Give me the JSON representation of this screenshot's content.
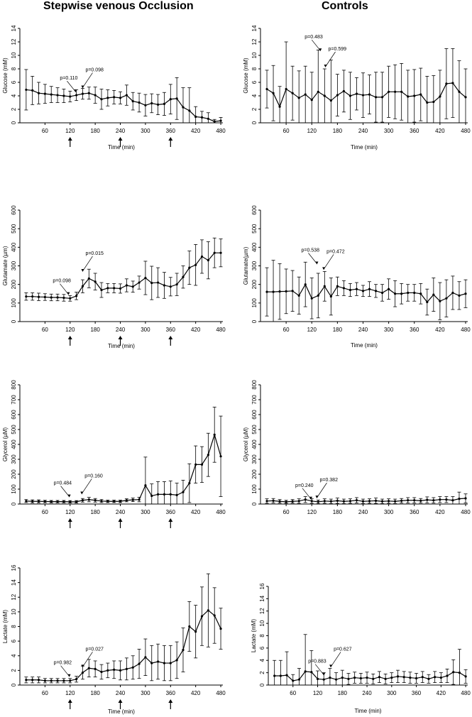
{
  "titles": {
    "left": "Stepwise venous Occlusion",
    "right": "Controls"
  },
  "chart_data": [
    {
      "type": "line",
      "group": "Stepwise venous Occlusion",
      "ylabel": "Glucose (mM)",
      "xlabel": "Time (min)",
      "xlim": [
        0,
        485
      ],
      "ylim": [
        0,
        14
      ],
      "xticks": [
        60,
        120,
        180,
        240,
        300,
        360,
        420,
        480
      ],
      "yticks": [
        0,
        2,
        4,
        6,
        8,
        10,
        12,
        14
      ],
      "arrows_at": [
        120,
        240,
        360
      ],
      "x": [
        15,
        30,
        45,
        60,
        75,
        90,
        105,
        120,
        135,
        150,
        165,
        180,
        195,
        210,
        225,
        240,
        255,
        270,
        285,
        300,
        315,
        330,
        345,
        360,
        375,
        390,
        405,
        420,
        435,
        450,
        465,
        480
      ],
      "y": [
        4.9,
        4.8,
        4.4,
        4.3,
        4.2,
        4.1,
        4.0,
        3.9,
        4.1,
        4.3,
        4.4,
        4.1,
        3.5,
        3.7,
        3.8,
        3.7,
        4.1,
        3.2,
        3.0,
        2.6,
        2.9,
        2.7,
        2.8,
        3.5,
        3.6,
        2.3,
        1.8,
        0.9,
        0.8,
        0.6,
        0.2,
        0.3
      ],
      "err": [
        3.0,
        2.1,
        1.6,
        1.4,
        1.2,
        1.1,
        1.0,
        0.8,
        0.8,
        0.8,
        0.9,
        1.2,
        1.5,
        1.2,
        1.0,
        0.9,
        1.5,
        1.3,
        1.4,
        1.6,
        1.4,
        1.5,
        1.7,
        2.2,
        3.1,
        2.9,
        3.4,
        1.5,
        0.9,
        0.9,
        0.3,
        0.5
      ],
      "annotations": [
        {
          "text": "p=0.110",
          "x": 133,
          "y": 4.3
        },
        {
          "text": "p=0.098",
          "x": 150,
          "y": 4.9
        }
      ]
    },
    {
      "type": "line",
      "group": "Controls",
      "ylabel": "Glucose (mM)",
      "xlabel": "Time (min)",
      "xlim": [
        0,
        485
      ],
      "ylim": [
        0,
        14
      ],
      "xticks": [
        60,
        120,
        180,
        240,
        300,
        360,
        420,
        480
      ],
      "yticks": [
        0,
        2,
        4,
        6,
        8,
        10,
        12,
        14
      ],
      "x": [
        15,
        30,
        45,
        60,
        75,
        90,
        105,
        120,
        135,
        150,
        165,
        180,
        195,
        210,
        225,
        240,
        255,
        270,
        285,
        300,
        315,
        330,
        345,
        360,
        375,
        390,
        405,
        420,
        435,
        450,
        465,
        480
      ],
      "y": [
        5.0,
        4.4,
        2.4,
        5.0,
        4.4,
        3.7,
        4.2,
        3.4,
        4.6,
        4.0,
        3.3,
        4.1,
        4.7,
        4.0,
        4.3,
        4.1,
        4.2,
        3.8,
        3.8,
        4.6,
        4.6,
        4.6,
        3.9,
        4.0,
        4.2,
        3.0,
        3.1,
        3.9,
        5.8,
        5.9,
        4.6,
        3.8
      ],
      "err": [
        2.8,
        4.1,
        3.0,
        7.0,
        4.0,
        4.0,
        4.2,
        4.1,
        6.2,
        4.0,
        6.0,
        3.1,
        3.1,
        3.5,
        2.4,
        3.3,
        2.9,
        3.7,
        3.7,
        3.8,
        4.0,
        4.2,
        3.9,
        3.9,
        3.9,
        3.9,
        3.9,
        3.9,
        5.2,
        5.1,
        4.6,
        4.2
      ],
      "annotations": [
        {
          "text": "p=0.483",
          "x": 140,
          "y": 10.4
        },
        {
          "text": "p=0.599",
          "x": 152,
          "y": 8.0
        }
      ]
    },
    {
      "type": "line",
      "group": "Stepwise venous Occlusion",
      "ylabel": "Glutamate (µm)",
      "xlabel": "Time (min)",
      "xlim": [
        0,
        485
      ],
      "ylim": [
        0,
        600
      ],
      "xticks": [
        60,
        120,
        180,
        240,
        300,
        360,
        420,
        480
      ],
      "yticks": [
        0,
        100,
        200,
        300,
        400,
        500,
        600
      ],
      "arrows_at": [
        120,
        240,
        360
      ],
      "x": [
        15,
        30,
        45,
        60,
        75,
        90,
        105,
        120,
        135,
        150,
        165,
        180,
        195,
        210,
        225,
        240,
        255,
        270,
        285,
        300,
        315,
        330,
        345,
        360,
        375,
        390,
        405,
        420,
        435,
        450,
        465,
        480
      ],
      "y": [
        135,
        135,
        133,
        132,
        130,
        130,
        128,
        125,
        138,
        190,
        232,
        215,
        170,
        180,
        180,
        178,
        195,
        188,
        210,
        235,
        208,
        210,
        195,
        188,
        200,
        240,
        290,
        305,
        350,
        330,
        370,
        370
      ],
      "err": [
        20,
        20,
        20,
        18,
        18,
        18,
        18,
        15,
        20,
        35,
        50,
        45,
        40,
        25,
        25,
        25,
        35,
        30,
        35,
        90,
        90,
        80,
        70,
        50,
        60,
        60,
        90,
        110,
        90,
        100,
        80,
        75
      ],
      "annotations": [
        {
          "text": "p=0.098",
          "x": 116,
          "y": 135
        },
        {
          "text": "p=0.015",
          "x": 150,
          "y": 260
        }
      ]
    },
    {
      "type": "line",
      "group": "Controls",
      "ylabel": "Glutamate(µm)",
      "xlabel": "Time (min)",
      "xlim": [
        0,
        485
      ],
      "ylim": [
        0,
        600
      ],
      "xticks": [
        60,
        120,
        180,
        240,
        300,
        360,
        420,
        480
      ],
      "yticks": [
        0,
        100,
        200,
        300,
        400,
        500,
        600
      ],
      "x": [
        15,
        30,
        45,
        60,
        75,
        90,
        105,
        120,
        135,
        150,
        165,
        180,
        195,
        210,
        225,
        240,
        255,
        270,
        285,
        300,
        315,
        330,
        345,
        360,
        375,
        390,
        405,
        420,
        435,
        450,
        465,
        480
      ],
      "y": [
        160,
        160,
        162,
        163,
        165,
        140,
        200,
        125,
        140,
        190,
        135,
        190,
        180,
        170,
        175,
        165,
        175,
        165,
        155,
        175,
        150,
        150,
        155,
        155,
        150,
        105,
        145,
        110,
        125,
        155,
        140,
        150
      ],
      "err": [
        130,
        170,
        150,
        120,
        110,
        100,
        120,
        110,
        120,
        80,
        100,
        50,
        40,
        35,
        35,
        30,
        40,
        35,
        45,
        55,
        70,
        55,
        45,
        45,
        55,
        70,
        90,
        100,
        100,
        90,
        75,
        75
      ],
      "annotations": [
        {
          "text": "p=0.538",
          "x": 132,
          "y": 300
        },
        {
          "text": "p=0.472",
          "x": 148,
          "y": 270
        }
      ]
    },
    {
      "type": "line",
      "group": "Stepwise venous Occlusion",
      "ylabel": "Glycerol (µM)",
      "xlabel": "",
      "xlim": [
        0,
        485
      ],
      "ylim": [
        0,
        800
      ],
      "xticks": [
        60,
        120,
        180,
        240,
        300,
        360,
        420,
        480
      ],
      "yticks": [
        0,
        100,
        200,
        300,
        400,
        500,
        600,
        700,
        800
      ],
      "arrows_at": [
        120,
        240,
        360
      ],
      "x": [
        15,
        30,
        45,
        60,
        75,
        90,
        105,
        120,
        135,
        150,
        165,
        180,
        195,
        210,
        225,
        240,
        255,
        270,
        285,
        300,
        315,
        330,
        345,
        360,
        375,
        390,
        405,
        420,
        435,
        450,
        465,
        480
      ],
      "y": [
        20,
        18,
        18,
        17,
        16,
        16,
        16,
        15,
        15,
        25,
        30,
        25,
        20,
        18,
        18,
        18,
        25,
        28,
        30,
        125,
        55,
        65,
        65,
        65,
        60,
        80,
        140,
        265,
        265,
        330,
        465,
        320
      ],
      "err": [
        10,
        10,
        10,
        8,
        8,
        8,
        8,
        8,
        8,
        12,
        15,
        12,
        10,
        8,
        8,
        8,
        10,
        12,
        15,
        190,
        80,
        85,
        85,
        90,
        80,
        80,
        130,
        125,
        120,
        145,
        185,
        270
      ],
      "annotations": [
        {
          "text": "p=0.484",
          "x": 118,
          "y": 35
        },
        {
          "text": "p=0.160",
          "x": 148,
          "y": 55
        }
      ]
    },
    {
      "type": "line",
      "group": "Controls",
      "ylabel": "Glycerol (µM)",
      "xlabel": "",
      "xlim": [
        0,
        485
      ],
      "ylim": [
        0,
        800
      ],
      "xticks": [
        60,
        120,
        180,
        240,
        300,
        360,
        420,
        480
      ],
      "yticks": [
        0,
        100,
        200,
        300,
        400,
        500,
        600,
        700,
        800
      ],
      "x": [
        15,
        30,
        45,
        60,
        75,
        90,
        105,
        120,
        135,
        150,
        165,
        180,
        195,
        210,
        225,
        240,
        255,
        270,
        285,
        300,
        315,
        330,
        345,
        360,
        375,
        390,
        405,
        420,
        435,
        450,
        465,
        480
      ],
      "y": [
        20,
        22,
        18,
        15,
        18,
        20,
        30,
        20,
        15,
        20,
        18,
        22,
        18,
        20,
        25,
        18,
        20,
        22,
        18,
        20,
        18,
        22,
        25,
        25,
        22,
        28,
        25,
        30,
        30,
        25,
        35,
        38
      ],
      "err": [
        15,
        15,
        12,
        10,
        12,
        15,
        20,
        15,
        12,
        15,
        15,
        18,
        15,
        15,
        18,
        15,
        15,
        18,
        15,
        15,
        15,
        15,
        18,
        18,
        15,
        20,
        18,
        20,
        20,
        25,
        45,
        30
      ],
      "annotations": [
        {
          "text": "p=0.240",
          "x": 118,
          "y": 20
        },
        {
          "text": "p=0.382",
          "x": 132,
          "y": 28
        }
      ]
    },
    {
      "type": "line",
      "group": "Stepwise venous Occlusion",
      "ylabel": "Lactate (mM)",
      "xlabel": "Time (min)",
      "xlim": [
        0,
        485
      ],
      "ylim": [
        0,
        16
      ],
      "xticks": [
        60,
        120,
        180,
        240,
        300,
        360,
        420,
        480
      ],
      "yticks": [
        0,
        2,
        4,
        6,
        8,
        10,
        12,
        14,
        16
      ],
      "arrows_at": [
        120,
        240,
        360
      ],
      "x": [
        15,
        30,
        45,
        60,
        75,
        90,
        105,
        120,
        135,
        150,
        165,
        180,
        195,
        210,
        225,
        240,
        255,
        270,
        285,
        300,
        315,
        330,
        345,
        360,
        375,
        390,
        405,
        420,
        435,
        450,
        465,
        480
      ],
      "y": [
        0.7,
        0.7,
        0.7,
        0.6,
        0.6,
        0.6,
        0.6,
        0.6,
        0.8,
        1.7,
        2.3,
        2.2,
        1.8,
        2.0,
        2.1,
        2.0,
        2.2,
        2.4,
        2.9,
        3.8,
        3.0,
        3.2,
        3.0,
        3.0,
        3.4,
        4.8,
        8.0,
        7.3,
        9.4,
        10.2,
        9.5,
        7.7
      ],
      "err": [
        0.4,
        0.4,
        0.4,
        0.3,
        0.3,
        0.3,
        0.3,
        0.3,
        0.4,
        0.9,
        1.2,
        1.1,
        1.0,
        1.0,
        1.2,
        1.3,
        1.5,
        1.6,
        2.0,
        2.5,
        2.4,
        2.4,
        2.4,
        2.4,
        2.5,
        3.0,
        3.4,
        3.6,
        4.0,
        5.0,
        3.8,
        2.8
      ],
      "annotations": [
        {
          "text": "p=0.982",
          "x": 118,
          "y": 0.9
        },
        {
          "text": "p=0.027",
          "x": 150,
          "y": 2.2
        }
      ]
    },
    {
      "type": "line",
      "group": "Controls",
      "ylabel": "Lactate (mM)",
      "xlabel": "Time (min)",
      "xlim": [
        0,
        485
      ],
      "ylim": [
        0,
        16
      ],
      "xticks": [
        60,
        120,
        180,
        240,
        300,
        360,
        420,
        480
      ],
      "yticks": [
        0,
        2,
        4,
        6,
        8,
        10,
        12,
        14,
        16
      ],
      "x": [
        15,
        30,
        45,
        60,
        75,
        90,
        105,
        120,
        135,
        150,
        165,
        180,
        195,
        210,
        225,
        240,
        255,
        270,
        285,
        300,
        315,
        330,
        345,
        360,
        375,
        390,
        405,
        420,
        435,
        450,
        465,
        480
      ],
      "y": [
        1.5,
        1.5,
        1.6,
        0.7,
        0.9,
        2.2,
        2.1,
        1.0,
        0.9,
        1.2,
        0.9,
        1.2,
        1.0,
        1.2,
        1.1,
        1.2,
        1.0,
        1.3,
        1.0,
        1.2,
        1.4,
        1.3,
        1.2,
        1.1,
        1.3,
        1.0,
        1.3,
        1.2,
        1.5,
        2.1,
        2.0,
        1.4
      ],
      "err": [
        2.5,
        2.5,
        3.8,
        1.0,
        1.8,
        6.0,
        3.5,
        1.3,
        1.1,
        1.5,
        1.1,
        1.2,
        0.9,
        0.9,
        0.8,
        0.9,
        0.8,
        0.9,
        0.8,
        0.8,
        1.0,
        0.9,
        0.9,
        0.8,
        0.9,
        0.7,
        0.9,
        0.8,
        1.1,
        2.0,
        3.8,
        1.1
      ],
      "annotations": [
        {
          "text": "p=0.883",
          "x": 135,
          "y": 1.3
        },
        {
          "text": "p=0.627",
          "x": 152,
          "y": 2.6
        }
      ]
    }
  ]
}
